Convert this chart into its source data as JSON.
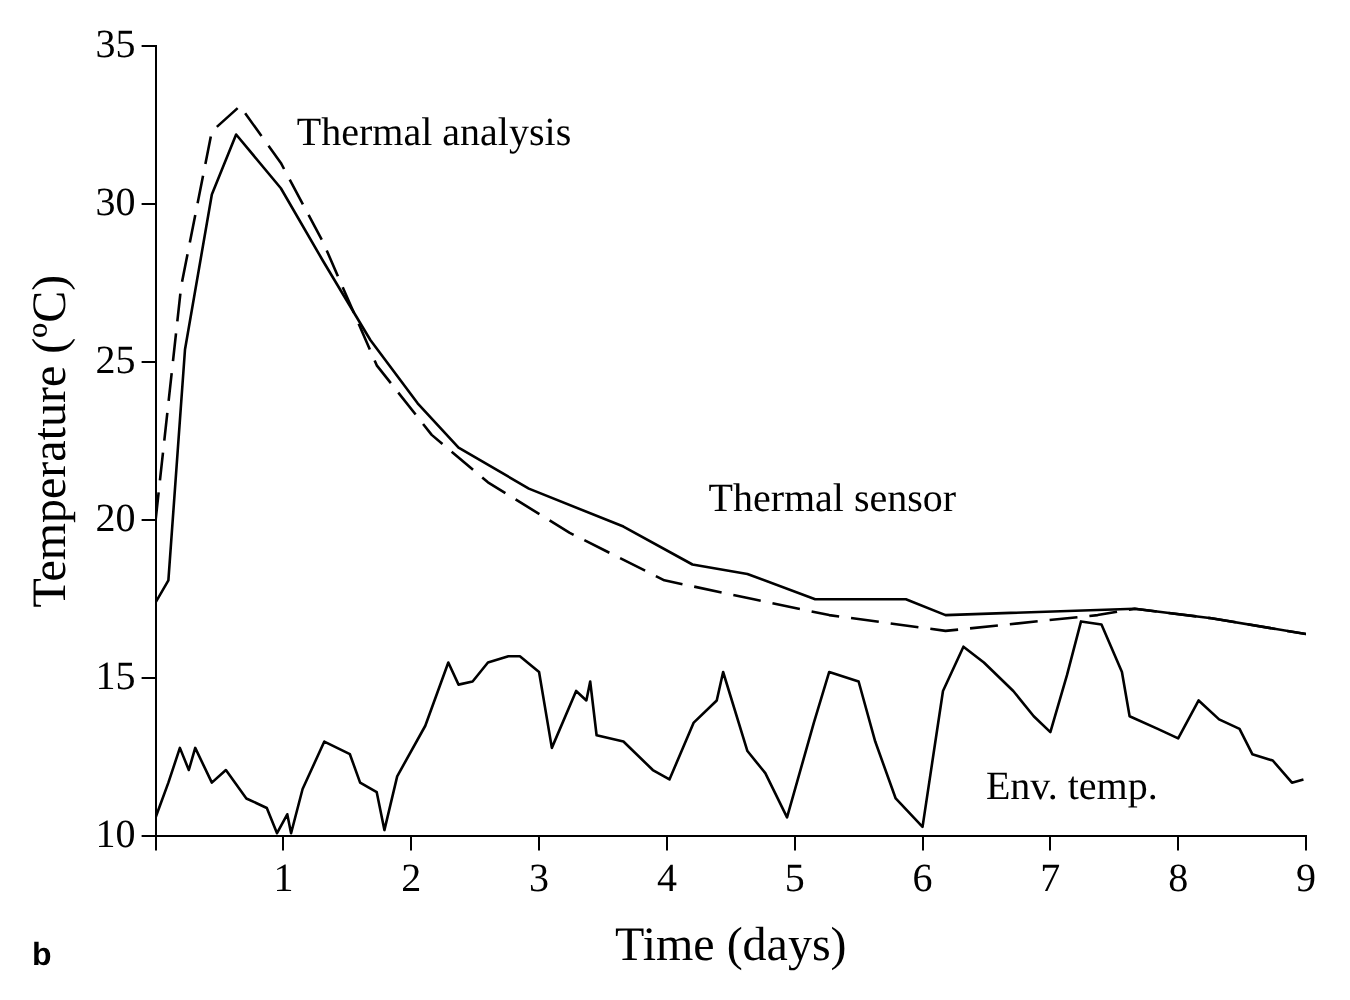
{
  "chart_data": {
    "type": "line",
    "xlabel": "Time (days)",
    "ylabel": "Temperature (ºC)",
    "annotations": [
      "b"
    ],
    "xlim": [
      0,
      9
    ],
    "ylim": [
      10,
      35
    ],
    "xticks": [
      {
        "value": 0,
        "label": null
      },
      1,
      2,
      3,
      4,
      5,
      6,
      7,
      8,
      9
    ],
    "yticks": [
      10,
      15,
      20,
      25,
      30,
      35
    ],
    "grid": false,
    "legend": false,
    "marker": "none",
    "series": [
      {
        "name": "Thermal sensor",
        "color": "#000000",
        "line_style": "solid",
        "x": [
          0,
          0.1,
          0.23,
          0.44,
          0.63,
          0.98,
          1.31,
          1.68,
          2.05,
          2.37,
          2.92,
          3.66,
          4.2,
          4.63,
          5.16,
          5.87,
          6.18,
          7.66,
          8.26,
          9
        ],
        "values": [
          17.4,
          18.1,
          25.4,
          30.3,
          32.2,
          30.5,
          28.2,
          25.7,
          23.7,
          22.3,
          21.0,
          19.8,
          18.6,
          18.3,
          17.5,
          17.5,
          17.0,
          17.2,
          16.9,
          16.4
        ]
      },
      {
        "name": "Thermal analysis",
        "color": "#000000",
        "line_style": "dashed",
        "x": [
          0,
          0.2,
          0.44,
          0.66,
          0.98,
          1.31,
          1.73,
          2.16,
          2.6,
          3.24,
          3.98,
          4.68,
          5.27,
          6.18,
          7.37,
          7.66,
          8.26,
          9
        ],
        "values": [
          20.0,
          27.4,
          32.3,
          33.1,
          31.3,
          28.8,
          24.9,
          22.7,
          21.2,
          19.6,
          18.1,
          17.5,
          17.0,
          16.5,
          17.0,
          17.2,
          16.9,
          16.4
        ]
      },
      {
        "name": "Env. temp.",
        "color": "#000000",
        "line_style": "solid",
        "x": [
          0,
          0.1,
          0.19,
          0.26,
          0.31,
          0.44,
          0.55,
          0.71,
          0.87,
          0.95,
          1.03,
          1.06,
          1.15,
          1.32,
          1.52,
          1.6,
          1.73,
          1.79,
          1.89,
          2.11,
          2.29,
          2.37,
          2.48,
          2.6,
          2.76,
          2.85,
          3.0,
          3.1,
          3.29,
          3.37,
          3.4,
          3.45,
          3.66,
          3.89,
          4.02,
          4.21,
          4.39,
          4.44,
          4.63,
          4.77,
          4.94,
          5.15,
          5.27,
          5.5,
          5.63,
          5.79,
          6.0,
          6.16,
          6.32,
          6.48,
          6.71,
          6.87,
          7.0,
          7.13,
          7.24,
          7.4,
          7.56,
          7.62,
          7.84,
          8.0,
          8.16,
          8.32,
          8.48,
          8.58,
          8.74,
          8.89,
          8.98
        ],
        "values": [
          10.6,
          11.7,
          12.8,
          12.1,
          12.8,
          11.7,
          12.1,
          11.2,
          10.9,
          10.1,
          10.7,
          10.1,
          11.5,
          13.0,
          12.6,
          11.7,
          11.4,
          10.2,
          11.9,
          13.5,
          15.5,
          14.8,
          14.9,
          15.5,
          15.7,
          15.7,
          15.2,
          12.8,
          14.6,
          14.3,
          14.9,
          13.2,
          13.0,
          12.1,
          11.8,
          13.6,
          14.3,
          15.2,
          12.7,
          12.0,
          10.6,
          13.6,
          15.2,
          14.9,
          13.0,
          11.2,
          10.3,
          14.6,
          16.0,
          15.5,
          14.6,
          13.8,
          13.3,
          15.1,
          16.8,
          16.7,
          15.2,
          13.8,
          13.4,
          13.1,
          14.3,
          13.7,
          13.4,
          12.6,
          12.4,
          11.7,
          11.8
        ]
      }
    ]
  }
}
